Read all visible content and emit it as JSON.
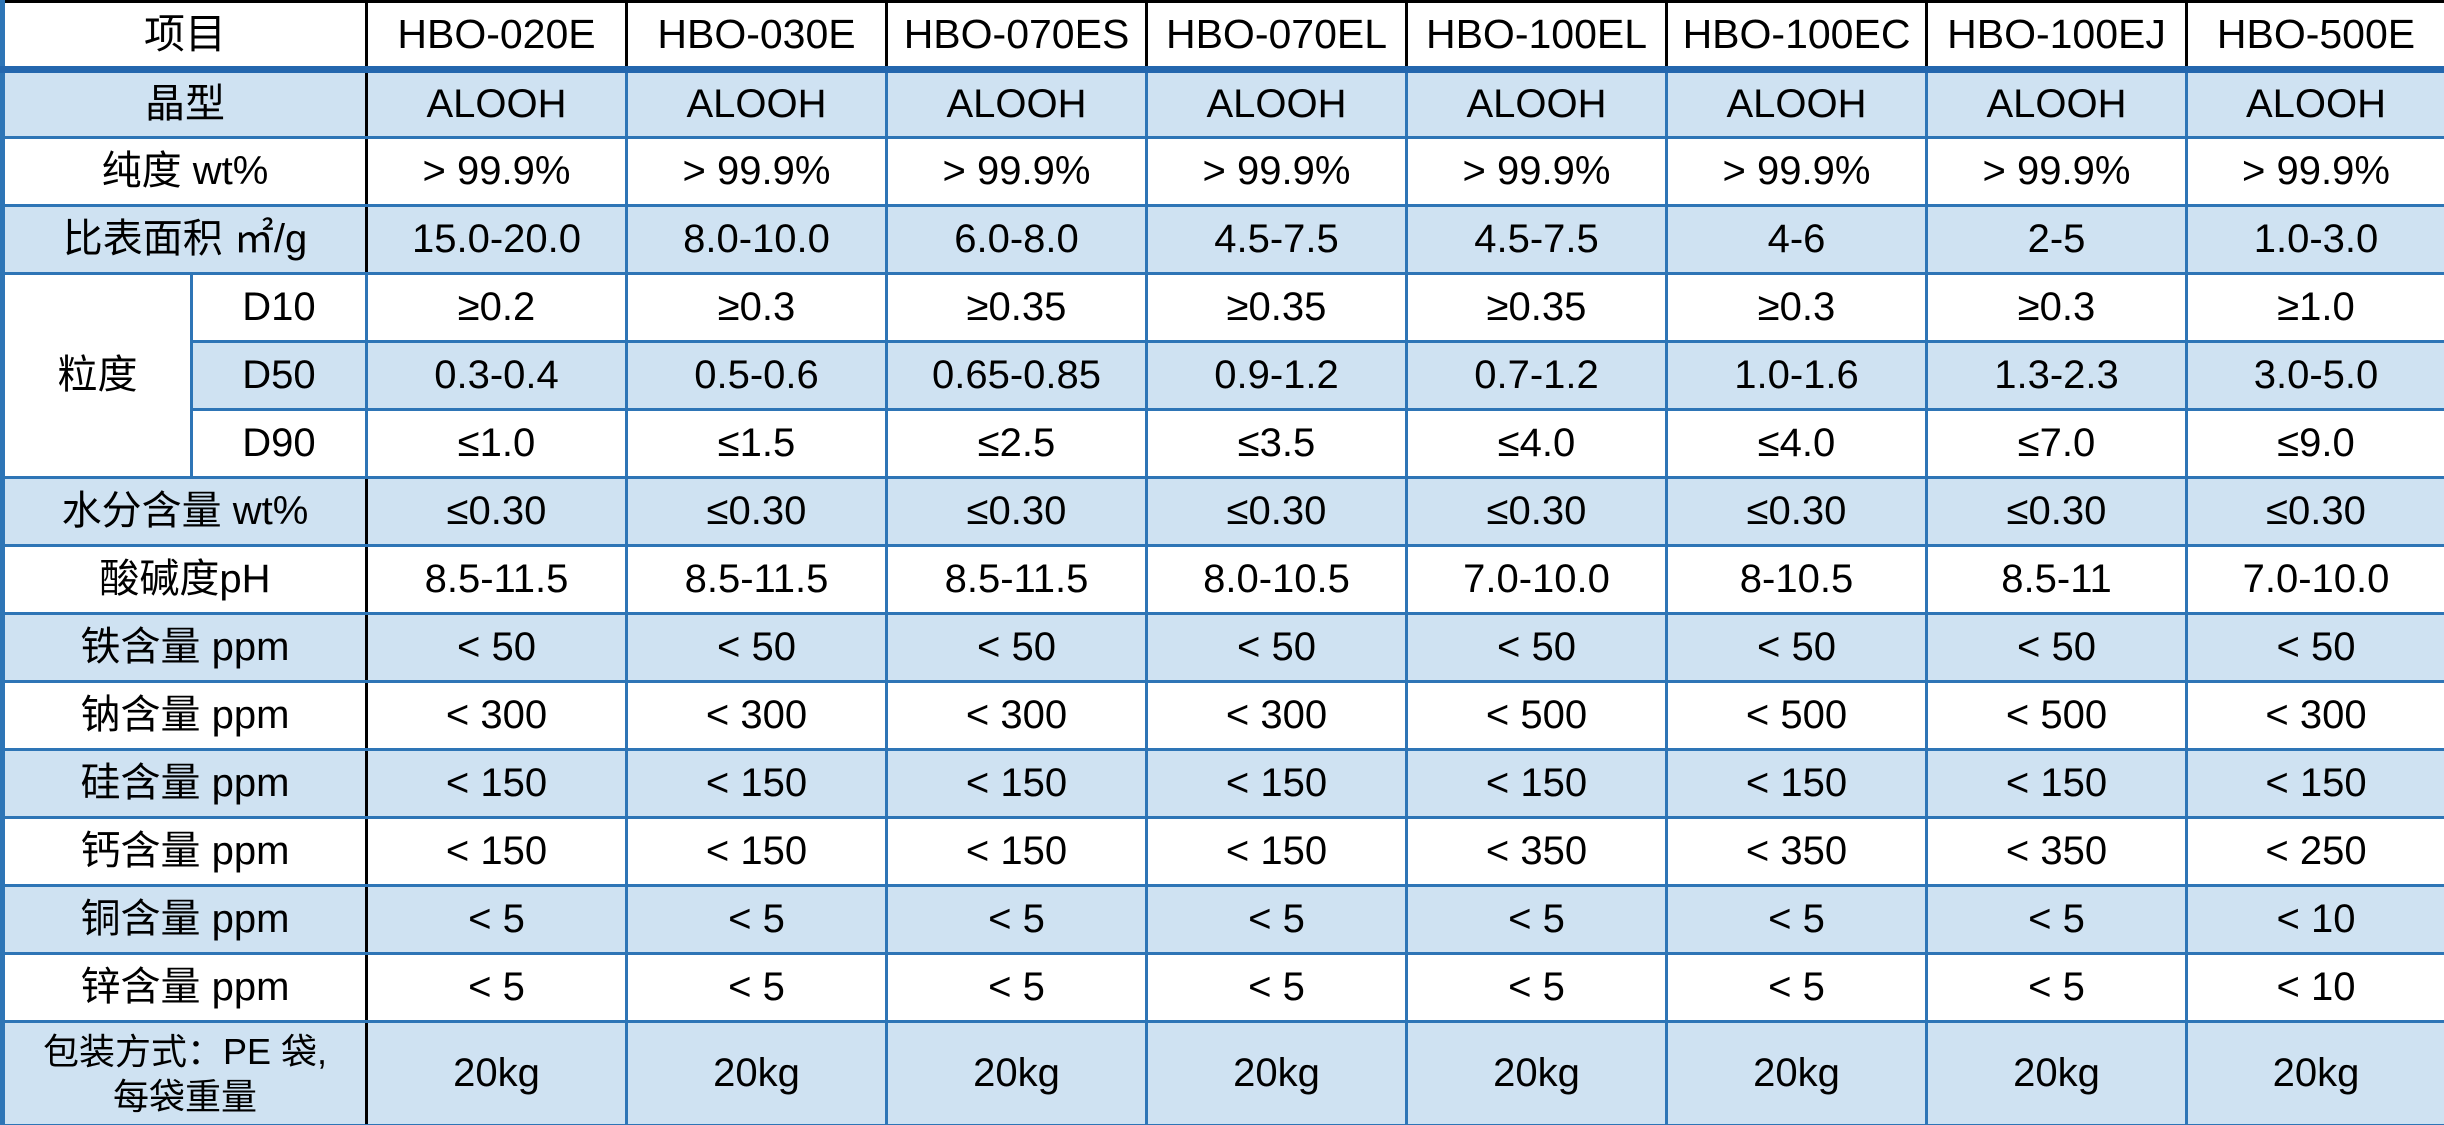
{
  "colors": {
    "grid_blue": "#2E75B6",
    "header_rule_blue": "#2467AE",
    "band_light_blue": "#CFE2F2",
    "header_border_black": "#000000",
    "text": "#000000",
    "background": "#FFFFFF"
  },
  "table": {
    "header": {
      "item_label": "项目",
      "columns": [
        "HBO-020E",
        "HBO-030E",
        "HBO-070ES",
        "HBO-070EL",
        "HBO-100EL",
        "HBO-100EC",
        "HBO-100EJ",
        "HBO-500E"
      ]
    },
    "rows": [
      {
        "type": "simple",
        "label": "晶型",
        "shade": true,
        "values": [
          "ALOOH",
          "ALOOH",
          "ALOOH",
          "ALOOH",
          "ALOOH",
          "ALOOH",
          "ALOOH",
          "ALOOH"
        ]
      },
      {
        "type": "simple",
        "label": "纯度 wt%",
        "shade": false,
        "values": [
          "> 99.9%",
          "> 99.9%",
          "> 99.9%",
          "> 99.9%",
          "> 99.9%",
          "> 99.9%",
          "> 99.9%",
          "> 99.9%"
        ]
      },
      {
        "type": "simple",
        "label": "比表面积 ㎡/g",
        "shade": true,
        "values": [
          "15.0-20.0",
          "8.0-10.0",
          "6.0-8.0",
          "4.5-7.5",
          "4.5-7.5",
          "4-6",
          "2-5",
          "1.0-3.0"
        ]
      },
      {
        "type": "group",
        "label": "粒度",
        "sub": [
          {
            "label": "D10",
            "shade": false,
            "values": [
              "≥0.2",
              "≥0.3",
              "≥0.35",
              "≥0.35",
              "≥0.35",
              "≥0.3",
              "≥0.3",
              "≥1.0"
            ]
          },
          {
            "label": "D50",
            "shade": true,
            "values": [
              "0.3-0.4",
              "0.5-0.6",
              "0.65-0.85",
              "0.9-1.2",
              "0.7-1.2",
              "1.0-1.6",
              "1.3-2.3",
              "3.0-5.0"
            ]
          },
          {
            "label": "D90",
            "shade": false,
            "values": [
              "≤1.0",
              "≤1.5",
              "≤2.5",
              "≤3.5",
              "≤4.0",
              "≤4.0",
              "≤7.0",
              "≤9.0"
            ]
          }
        ]
      },
      {
        "type": "simple",
        "label": "水分含量 wt%",
        "shade": true,
        "values": [
          "≤0.30",
          "≤0.30",
          "≤0.30",
          "≤0.30",
          "≤0.30",
          "≤0.30",
          "≤0.30",
          "≤0.30"
        ]
      },
      {
        "type": "simple",
        "label": "酸碱度pH",
        "shade": false,
        "values": [
          "8.5-11.5",
          "8.5-11.5",
          "8.5-11.5",
          "8.0-10.5",
          "7.0-10.0",
          "8-10.5",
          "8.5-11",
          "7.0-10.0"
        ]
      },
      {
        "type": "simple",
        "label": "铁含量 ppm",
        "shade": true,
        "values": [
          "< 50",
          "< 50",
          "< 50",
          "< 50",
          "< 50",
          "< 50",
          "< 50",
          "< 50"
        ]
      },
      {
        "type": "simple",
        "label": "钠含量 ppm",
        "shade": false,
        "values": [
          "< 300",
          "< 300",
          "< 300",
          "< 300",
          "< 500",
          "< 500",
          "< 500",
          "< 300"
        ]
      },
      {
        "type": "simple",
        "label": "硅含量 ppm",
        "shade": true,
        "values": [
          "< 150",
          "< 150",
          "< 150",
          "< 150",
          "< 150",
          "< 150",
          "< 150",
          "< 150"
        ]
      },
      {
        "type": "simple",
        "label": "钙含量 ppm",
        "shade": false,
        "values": [
          "< 150",
          "< 150",
          "< 150",
          "< 150",
          "< 350",
          "< 350",
          "< 350",
          "< 250"
        ]
      },
      {
        "type": "simple",
        "label": "铜含量 ppm",
        "shade": true,
        "values": [
          "< 5",
          "< 5",
          "< 5",
          "< 5",
          "< 5",
          "< 5",
          "< 5",
          "< 10"
        ]
      },
      {
        "type": "simple",
        "label": "锌含量 ppm",
        "shade": false,
        "values": [
          "< 5",
          "< 5",
          "< 5",
          "< 5",
          "< 5",
          "< 5",
          "< 5",
          "< 10"
        ]
      },
      {
        "type": "pack",
        "label_lines": [
          "包装方式：PE 袋,",
          "每袋重量"
        ],
        "shade": true,
        "tall": true,
        "values": [
          "20kg",
          "20kg",
          "20kg",
          "20kg",
          "20kg",
          "20kg",
          "20kg",
          "20kg"
        ]
      }
    ],
    "layout": {
      "label_col1_width": 189,
      "label_col2_width": 175,
      "data_col_width": 260
    }
  }
}
